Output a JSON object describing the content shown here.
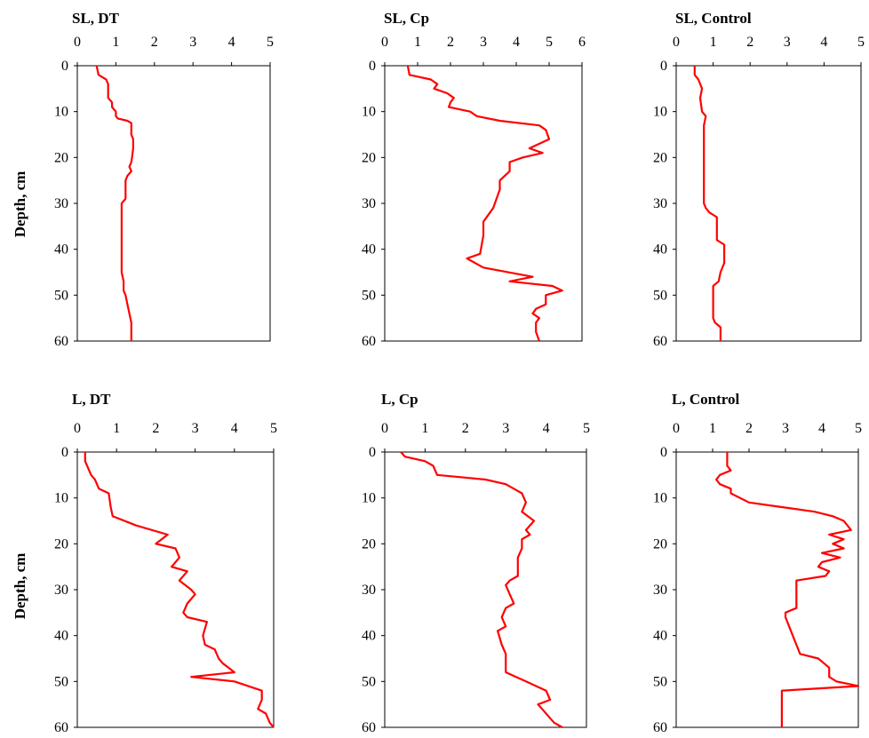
{
  "figure": {
    "ylabel": "Depth, cm"
  },
  "chart_data": [
    {
      "type": "line",
      "title": "SL, DT",
      "xlim": [
        0,
        5
      ],
      "ylim": [
        0,
        60
      ],
      "y_reversed": true,
      "x_axis_position": "top",
      "xticks": [
        0,
        1,
        2,
        3,
        4,
        5
      ],
      "yticks": [
        0,
        10,
        20,
        30,
        40,
        50,
        60
      ],
      "ylabel": "Depth, cm",
      "color": "#ff0000",
      "series": [
        {
          "x": [
            0.5,
            0.55,
            0.75,
            0.8,
            0.8,
            0.9,
            0.9,
            1.0,
            1.0,
            1.05,
            1.3,
            1.4,
            1.4,
            1.45,
            1.45,
            1.42,
            1.4,
            1.35,
            1.4,
            1.3,
            1.25,
            1.25,
            1.15,
            1.15,
            1.15,
            1.15,
            1.15,
            1.2,
            1.2,
            1.25,
            1.3,
            1.35,
            1.4,
            1.4
          ],
          "y": [
            0,
            2,
            3,
            4,
            7,
            8,
            9,
            10,
            11,
            11.5,
            12,
            12.5,
            15,
            16,
            18,
            20,
            21,
            22,
            23,
            24,
            25,
            29,
            30,
            31,
            35,
            40,
            45,
            47,
            49,
            50,
            52,
            54,
            56,
            60
          ]
        }
      ]
    },
    {
      "type": "line",
      "title": "SL, Cp",
      "xlim": [
        0,
        6
      ],
      "ylim": [
        0,
        60
      ],
      "y_reversed": true,
      "x_axis_position": "top",
      "xticks": [
        0,
        1,
        2,
        3,
        4,
        5,
        6
      ],
      "yticks": [
        0,
        10,
        20,
        30,
        40,
        50,
        60
      ],
      "ylabel": "",
      "color": "#ff0000",
      "series": [
        {
          "x": [
            0.7,
            0.75,
            1.4,
            1.6,
            1.5,
            1.9,
            2.1,
            2.0,
            1.95,
            2.6,
            2.8,
            3.5,
            4.7,
            4.9,
            5.0,
            4.4,
            4.8,
            4.2,
            3.8,
            3.8,
            3.5,
            3.5,
            3.4,
            3.3,
            3.0,
            3.0,
            2.9,
            2.5,
            3.0,
            4.5,
            3.8,
            5.1,
            5.4,
            4.9,
            4.9,
            4.6,
            4.5,
            4.7,
            4.6,
            4.6,
            4.7
          ],
          "y": [
            0,
            2,
            3,
            4,
            5,
            6,
            7,
            8,
            9,
            10,
            11,
            12,
            13,
            14,
            16,
            18,
            19,
            20,
            21,
            23,
            25,
            27,
            29,
            31,
            34,
            37,
            41,
            42,
            44,
            46,
            47,
            48,
            49,
            50,
            52,
            53,
            54,
            55,
            56,
            58,
            60
          ]
        }
      ]
    },
    {
      "type": "line",
      "title": "SL, Control",
      "xlim": [
        0,
        5
      ],
      "ylim": [
        0,
        60
      ],
      "y_reversed": true,
      "x_axis_position": "top",
      "xticks": [
        0,
        1,
        2,
        3,
        4,
        5
      ],
      "yticks": [
        0,
        10,
        20,
        30,
        40,
        50,
        60
      ],
      "ylabel": "",
      "color": "#ff0000",
      "series": [
        {
          "x": [
            0.5,
            0.5,
            0.6,
            0.7,
            0.65,
            0.7,
            0.8,
            0.75,
            0.75,
            0.75,
            0.8,
            0.9,
            1.1,
            1.1,
            1.3,
            1.3,
            1.2,
            1.15,
            1.0,
            1.0,
            1.05,
            1.2,
            1.2
          ],
          "y": [
            0,
            2,
            3,
            5,
            7,
            10,
            11,
            13,
            20,
            30,
            31,
            32,
            33,
            38,
            39,
            43,
            45,
            47,
            48,
            55,
            56,
            57,
            60
          ]
        }
      ]
    },
    {
      "type": "line",
      "title": "L, DT",
      "xlim": [
        0,
        5
      ],
      "ylim": [
        0,
        60
      ],
      "y_reversed": true,
      "x_axis_position": "top",
      "xticks": [
        0,
        1,
        2,
        3,
        4,
        5
      ],
      "yticks": [
        0,
        10,
        20,
        30,
        40,
        50,
        60
      ],
      "ylabel": "Depth, cm",
      "color": "#ff0000",
      "series": [
        {
          "x": [
            0.2,
            0.2,
            0.3,
            0.35,
            0.45,
            0.5,
            0.55,
            0.8,
            0.85,
            0.9,
            1.5,
            2.3,
            2.0,
            2.5,
            2.6,
            2.4,
            2.8,
            2.6,
            2.9,
            3.0,
            2.8,
            2.7,
            2.8,
            3.3,
            3.2,
            3.25,
            3.5,
            3.6,
            3.7,
            4.0,
            2.9,
            4.0,
            4.7,
            4.7,
            4.6,
            4.8,
            4.9,
            5.0
          ],
          "y": [
            0,
            2,
            4,
            5,
            6,
            7,
            8,
            9,
            12,
            14,
            16,
            18,
            20,
            21,
            23,
            25,
            26,
            28,
            30,
            31,
            33,
            35,
            36,
            37,
            40,
            42,
            43,
            45,
            46,
            48,
            49,
            50,
            52,
            54,
            56,
            57,
            59,
            60
          ]
        }
      ]
    },
    {
      "type": "line",
      "title": "L, Cp",
      "xlim": [
        0,
        5
      ],
      "ylim": [
        0,
        60
      ],
      "y_reversed": true,
      "x_axis_position": "top",
      "xticks": [
        0,
        1,
        2,
        3,
        4,
        5
      ],
      "yticks": [
        0,
        10,
        20,
        30,
        40,
        50,
        60
      ],
      "ylabel": "",
      "color": "#ff0000",
      "series": [
        {
          "x": [
            0.4,
            0.5,
            1.0,
            1.2,
            1.3,
            2.5,
            3.0,
            3.2,
            3.4,
            3.5,
            3.4,
            3.7,
            3.5,
            3.6,
            3.4,
            3.4,
            3.3,
            3.3,
            3.3,
            3.1,
            3.0,
            3.1,
            3.2,
            3.0,
            2.9,
            3.0,
            2.8,
            2.9,
            3.0,
            3.0,
            3.5,
            4.0,
            4.1,
            3.8,
            3.9,
            4.1,
            4.2,
            4.4
          ],
          "y": [
            0,
            1,
            2,
            3,
            5,
            6,
            7,
            8,
            9,
            11,
            13,
            15,
            17,
            18,
            19,
            21,
            23,
            25,
            27,
            28,
            29,
            31,
            33,
            34,
            36,
            38,
            39,
            42,
            44,
            48,
            50,
            52,
            54,
            55,
            56,
            58,
            59,
            60
          ]
        }
      ]
    },
    {
      "type": "line",
      "title": "L, Control",
      "xlim": [
        0,
        5
      ],
      "ylim": [
        0,
        60
      ],
      "y_reversed": true,
      "x_axis_position": "top",
      "xticks": [
        0,
        1,
        2,
        3,
        4,
        5
      ],
      "yticks": [
        0,
        10,
        20,
        30,
        40,
        50,
        60
      ],
      "ylabel": "",
      "color": "#ff0000",
      "series": [
        {
          "x": [
            1.4,
            1.4,
            1.5,
            1.2,
            1.1,
            1.2,
            1.5,
            1.5,
            2.0,
            2.9,
            3.8,
            4.3,
            4.6,
            4.8,
            4.2,
            4.6,
            4.3,
            4.6,
            4.0,
            4.5,
            4.0,
            3.9,
            4.2,
            4.1,
            3.3,
            3.3,
            3.3,
            3.0,
            3.0,
            3.1,
            3.2,
            3.3,
            3.4,
            3.9,
            4.2,
            4.2,
            4.4,
            5.0,
            2.9,
            2.9
          ],
          "y": [
            0,
            3,
            4,
            5,
            6,
            7,
            8,
            9,
            11,
            12,
            13,
            14,
            15,
            17,
            18,
            19,
            20,
            21,
            22,
            23,
            24,
            25,
            26,
            27,
            28,
            33,
            34,
            35,
            36,
            38,
            40,
            42,
            44,
            45,
            47,
            49,
            50,
            51,
            52,
            60
          ]
        }
      ]
    }
  ]
}
